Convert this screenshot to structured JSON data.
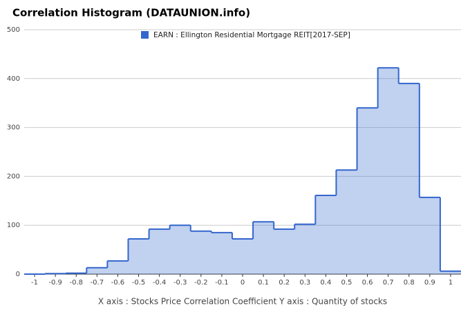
{
  "chart_data": {
    "type": "histogram",
    "title": "Correlation Histogram (DATAUNION.info)",
    "axis_title": "X axis : Stocks Price Correlation Coefficient  Y axis : Quantity of stocks",
    "bins": [
      -1.05,
      -0.95,
      -0.85,
      -0.75,
      -0.65,
      -0.55,
      -0.45,
      -0.35,
      -0.25,
      -0.15,
      -0.05,
      0.05,
      0.15,
      0.25,
      0.35,
      0.45,
      0.55,
      0.65,
      0.75,
      0.85,
      0.95,
      1.05
    ],
    "series": [
      {
        "name": "EARN : Ellington Residential Mortgage REIT[2017-SEP]",
        "color": "#3366cc",
        "values": [
          0,
          1,
          2,
          13,
          27,
          72,
          92,
          100,
          88,
          85,
          72,
          107,
          92,
          102,
          161,
          213,
          340,
          422,
          390,
          157,
          6
        ]
      }
    ],
    "xlim": [
      -1.05,
      1.05
    ],
    "xticks": [
      -1,
      -0.9,
      -0.8,
      -0.7,
      -0.6,
      -0.5,
      -0.4,
      -0.3,
      -0.2,
      -0.1,
      0,
      0.1,
      0.2,
      0.3,
      0.4,
      0.5,
      0.6,
      0.7,
      0.8,
      0.9,
      1
    ],
    "ylim": [
      0,
      500
    ],
    "yticks": [
      0,
      100,
      200,
      300,
      400,
      500
    ],
    "grid": true
  }
}
